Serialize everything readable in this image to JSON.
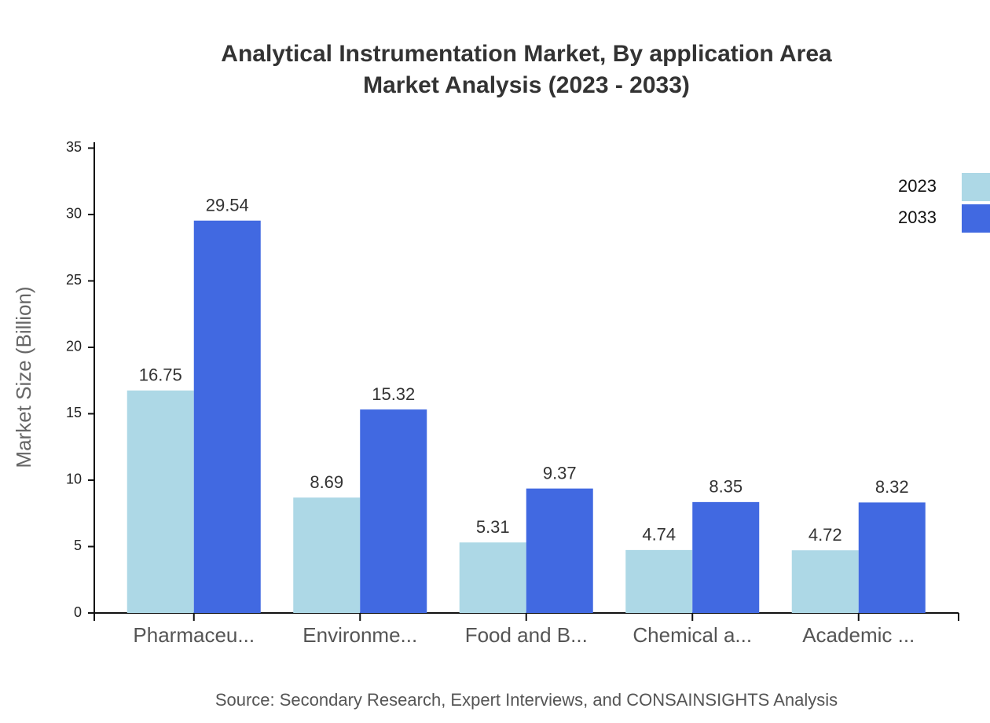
{
  "chart_data": {
    "type": "bar",
    "title": "Analytical Instrumentation Market, By application Area",
    "subtitle": "Market Analysis (2023 - 2033)",
    "y_label": "Market Size (Billion)",
    "source": "Source: Secondary Research, Expert Interviews, and CONSAINSIGHTS Analysis",
    "categories": [
      "Pharmaceu...",
      "Environme...",
      "Food and B...",
      "Chemical a...",
      "Academic ..."
    ],
    "series": [
      {
        "name": "2023",
        "color": "#add8e6",
        "values": [
          16.75,
          8.69,
          5.31,
          4.74,
          4.72
        ]
      },
      {
        "name": "2033",
        "color": "#4169e1",
        "values": [
          29.54,
          15.32,
          9.37,
          8.35,
          8.32
        ]
      }
    ],
    "ylim": [
      0,
      35.44
    ],
    "yticks": [
      0,
      5,
      10,
      15,
      20,
      25,
      30,
      35
    ],
    "legend": "upper-right"
  }
}
